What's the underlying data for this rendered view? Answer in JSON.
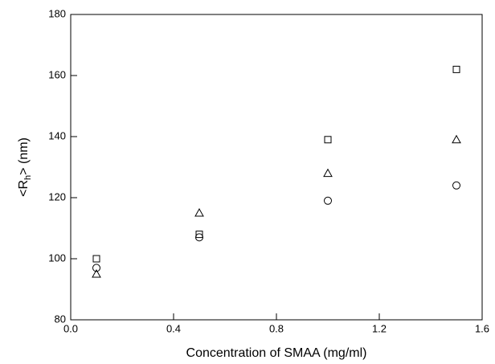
{
  "chart_data": {
    "type": "scatter",
    "xlabel": "Concentration of SMAA (mg/ml)",
    "ylabel": {
      "main": "<R",
      "sub": "h",
      "tail": "> (nm)"
    },
    "x": [
      0.1,
      0.5,
      1.0,
      1.5
    ],
    "series": [
      {
        "marker": "square",
        "color": "#000000",
        "values": [
          100,
          108,
          139,
          162
        ]
      },
      {
        "marker": "triangle",
        "color": "#000000",
        "values": [
          95,
          115,
          128,
          139
        ]
      },
      {
        "marker": "circle",
        "color": "#000000",
        "values": [
          97,
          107,
          119,
          124
        ]
      }
    ],
    "xlim": [
      0,
      1.6
    ],
    "xticks": [
      {
        "value": 0,
        "label": "0.0"
      },
      0.4,
      0.8,
      1.2,
      1.6
    ],
    "ylim": [
      80,
      180
    ],
    "yticks": [
      80,
      100,
      120,
      140,
      160,
      180
    ]
  }
}
